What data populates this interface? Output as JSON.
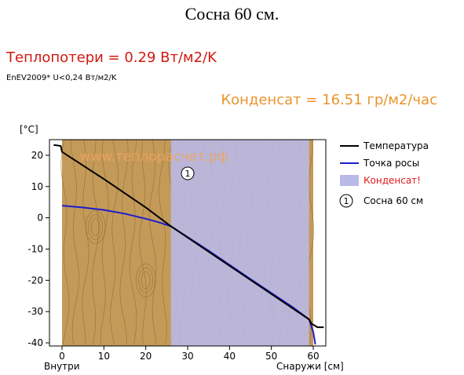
{
  "page": {
    "title": "Сосна 60 см.",
    "heat_loss": "Теплопотери = 0.29 Вт/м2/K",
    "standard_note": "EnEV2009* U<0,24 Вт/м2/K",
    "condensate_rate": "Конденсат = 16.51 гр/м2/час"
  },
  "colors": {
    "heat_loss": "#d11a12",
    "condensate_rate": "#e8952e",
    "wood": "#c49a58",
    "condensation_zone": "#b9b9e8",
    "temperature_line": "#000000",
    "dew_point_line": "#1c1ccd",
    "watermark": "#f0a45e"
  },
  "chart_data": {
    "type": "line",
    "ylabel": "[°C]",
    "xlabel_left": "Внутри",
    "xlabel_right": "Снаружи [см]",
    "watermark": "www.теплорасчет.рф",
    "xlim": [
      -3,
      63
    ],
    "ylim": [
      -41,
      25
    ],
    "xticks": [
      0,
      10,
      20,
      30,
      40,
      50,
      60
    ],
    "yticks": [
      20,
      10,
      0,
      -10,
      -20,
      -30,
      -40
    ],
    "grid": false,
    "legend_position": "right",
    "layers": [
      {
        "marker": "1",
        "name": "Сосна 60 см",
        "from": 0,
        "to": 60
      }
    ],
    "condensation_zone": {
      "from": 26,
      "to": 59
    },
    "series": [
      {
        "name": "Температура",
        "x": [
          -2,
          -0.3,
          0,
          10,
          20,
          26,
          59,
          59.6,
          60,
          61,
          62.5
        ],
        "y": [
          23.3,
          23.0,
          21.1,
          12.4,
          3.3,
          -2.7,
          -32.5,
          -33.9,
          -34.2,
          -35.0,
          -35.0
        ]
      },
      {
        "name": "Точка росы",
        "x": [
          0,
          5,
          10,
          15,
          20,
          23,
          26,
          35,
          45,
          55,
          59,
          60,
          60.5
        ],
        "y": [
          3.9,
          3.3,
          2.5,
          1.3,
          -0.3,
          -1.4,
          -2.7,
          -10.5,
          -19.6,
          -28.5,
          -32.5,
          -36.5,
          -40.5
        ]
      }
    ],
    "legend": [
      {
        "label": "Температура",
        "kind": "line",
        "color": "#000000"
      },
      {
        "label": "Точка росы",
        "kind": "line",
        "color": "#1c1ccd"
      },
      {
        "label": "Конденсат!",
        "kind": "patch",
        "color": "#b9b9e8",
        "text_color": "#e31a1a"
      }
    ],
    "layer_legend": {
      "marker": "1",
      "label": "Сосна 60 см"
    }
  }
}
